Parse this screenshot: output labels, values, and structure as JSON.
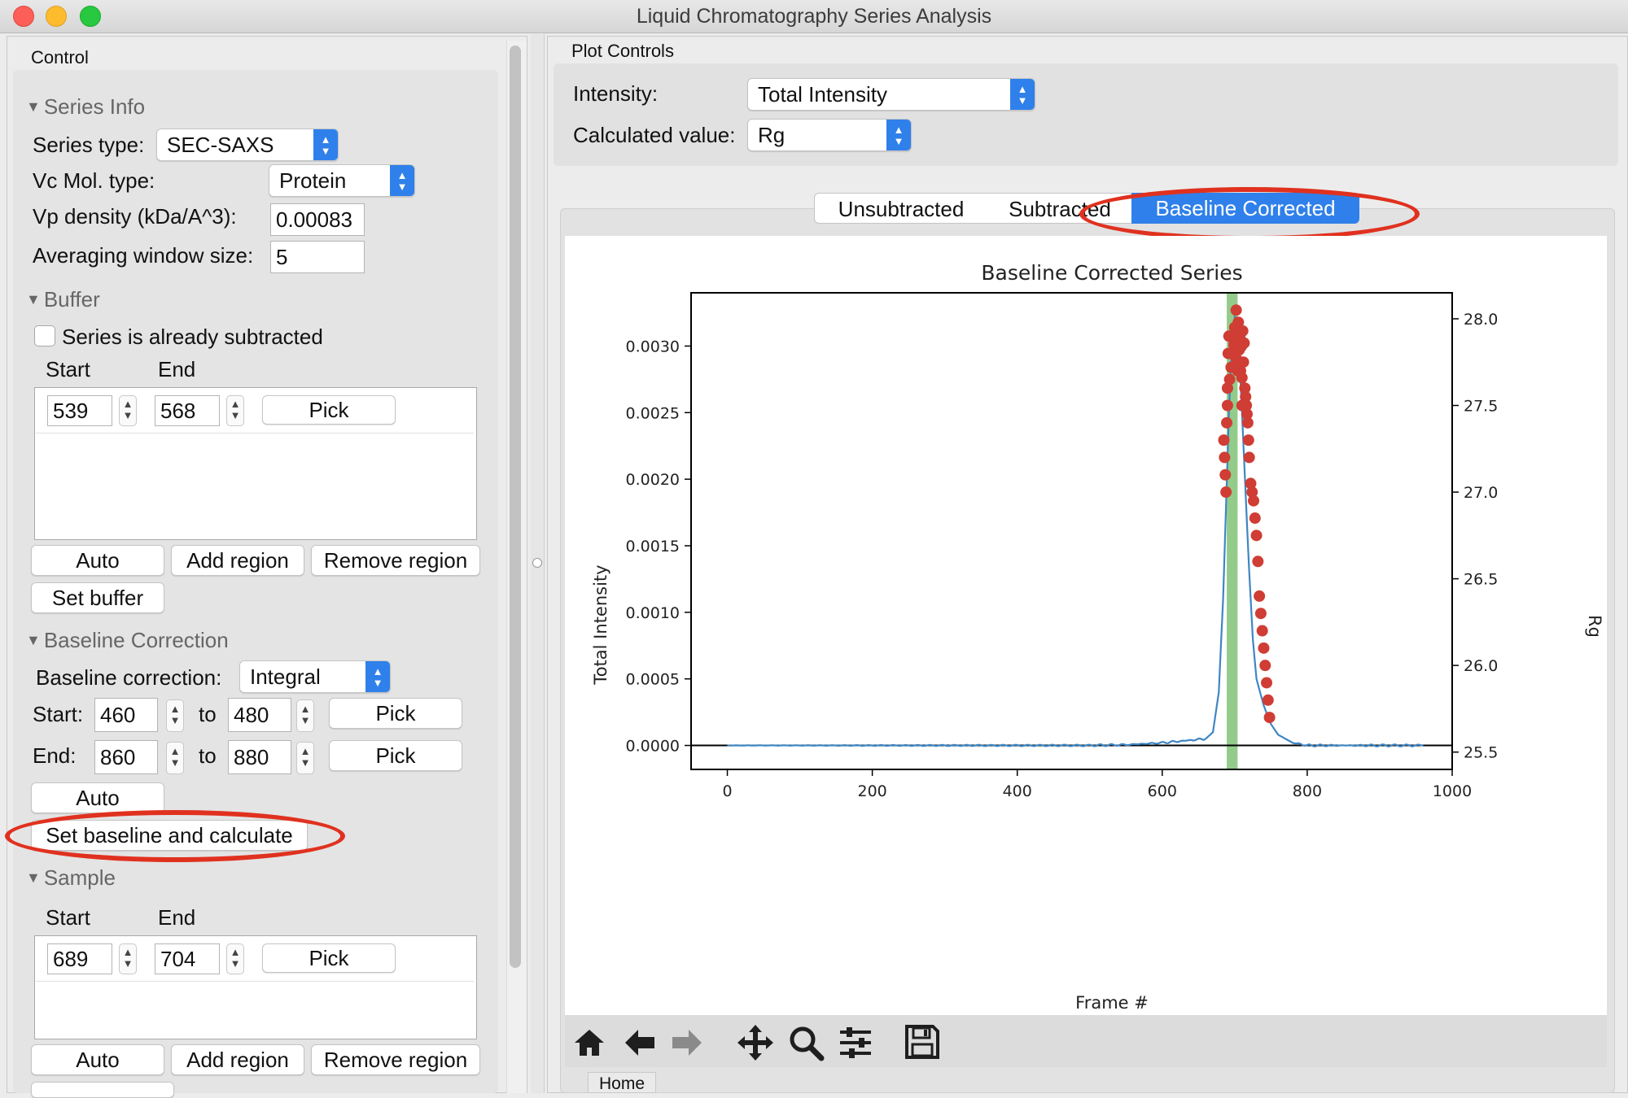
{
  "window": {
    "title": "Liquid Chromatography Series Analysis"
  },
  "control": {
    "title": "Control",
    "series_info": {
      "header": "Series Info",
      "series_type_label": "Series type:",
      "series_type_value": "SEC-SAXS",
      "vc_mol_label": "Vc Mol. type:",
      "vc_mol_value": "Protein",
      "vp_density_label": "Vp density (kDa/A^3):",
      "vp_density_value": "0.00083",
      "avg_window_label": "Averaging window size:",
      "avg_window_value": "5"
    },
    "buffer": {
      "header": "Buffer",
      "already_subtracted_label": "Series is already subtracted",
      "start_header": "Start",
      "end_header": "End",
      "start_value": "539",
      "end_value": "568",
      "pick_label": "Pick",
      "auto_label": "Auto",
      "add_region_label": "Add region",
      "remove_region_label": "Remove region",
      "set_buffer_label": "Set buffer"
    },
    "baseline": {
      "header": "Baseline Correction",
      "correction_label": "Baseline correction:",
      "correction_value": "Integral",
      "start_label": "Start:",
      "start_from": "460",
      "start_to": "480",
      "end_label": "End:",
      "end_from": "860",
      "end_to": "880",
      "to_label": "to",
      "pick_label": "Pick",
      "auto_label": "Auto",
      "set_label": "Set baseline and calculate"
    },
    "sample": {
      "header": "Sample",
      "start_header": "Start",
      "end_header": "End",
      "start_value": "689",
      "end_value": "704",
      "pick_label": "Pick",
      "auto_label": "Auto",
      "add_region_label": "Add region",
      "remove_region_label": "Remove region"
    }
  },
  "plot_controls": {
    "title": "Plot Controls",
    "intensity_label": "Intensity:",
    "intensity_value": "Total Intensity",
    "calc_label": "Calculated value:",
    "calc_value": "Rg"
  },
  "tabs": [
    "Unsubtracted",
    "Subtracted",
    "Baseline Corrected"
  ],
  "active_tab": "Baseline Corrected",
  "tooltip": "Home",
  "toolbar_icons": [
    "home-icon",
    "back-arrow-icon",
    "forward-arrow-icon",
    "pan-icon",
    "zoom-icon",
    "configure-icon",
    "save-icon"
  ],
  "colors": {
    "accent": "#2f80ea",
    "highlight_oval": "#e0311f",
    "series_line": "#3f86c3",
    "rg_points": "#cf3d34",
    "sample_region": "#93cc8a"
  },
  "chart_data": {
    "type": "line",
    "title": "Baseline Corrected Series",
    "xlabel": "Frame #",
    "ylabel": "Total Intensity",
    "y2label": "Rg",
    "xlim": [
      -50,
      1000
    ],
    "ylim": [
      -0.00018,
      0.0034
    ],
    "y2lim": [
      25.4,
      28.15
    ],
    "xticks": [
      "0",
      "200",
      "400",
      "600",
      "800",
      "1000"
    ],
    "yticks": [
      "0.0000",
      "0.0005",
      "0.0010",
      "0.0015",
      "0.0020",
      "0.0025",
      "0.0030"
    ],
    "y2ticks": [
      "25.5",
      "26.0",
      "26.5",
      "27.0",
      "27.5",
      "28.0"
    ],
    "highlight_region": [
      689,
      704
    ],
    "series": [
      {
        "name": "Total Intensity",
        "x": [
          0,
          100,
          200,
          300,
          400,
          500,
          550,
          600,
          620,
          640,
          660,
          670,
          678,
          684,
          688,
          692,
          696,
          700,
          703,
          706,
          710,
          715,
          720,
          725,
          730,
          740,
          750,
          760,
          780,
          800,
          850,
          900,
          960
        ],
        "values": [
          0.0,
          0.0,
          0.0,
          0.0,
          0.0,
          0.0,
          5e-06,
          2e-05,
          3e-05,
          4e-05,
          5e-05,
          0.0001,
          0.0004,
          0.0011,
          0.0018,
          0.0025,
          0.003,
          0.00322,
          0.0032,
          0.00295,
          0.0025,
          0.0019,
          0.0013,
          0.0008,
          0.0005,
          0.0003,
          0.00016,
          8e-05,
          2e-05,
          0.0,
          0.0,
          0.0,
          0.0
        ]
      },
      {
        "name": "Rg",
        "axis": "right",
        "x": [
          690,
          693,
          695,
          697,
          699,
          700,
          701,
          702,
          703,
          704,
          705,
          706,
          707,
          708,
          709,
          710,
          711,
          712,
          713,
          714,
          715,
          716,
          717,
          718,
          719,
          720,
          722,
          724,
          726,
          728,
          730,
          732,
          734,
          736,
          738,
          740,
          742,
          744,
          746,
          748,
          685,
          686,
          687,
          688,
          689,
          690,
          691,
          692,
          700,
          702,
          704,
          706,
          708,
          710
        ],
        "values": [
          27.5,
          27.65,
          27.72,
          27.8,
          27.85,
          27.9,
          27.78,
          27.95,
          27.88,
          27.76,
          27.98,
          27.82,
          27.9,
          27.7,
          27.84,
          27.66,
          27.93,
          27.75,
          27.86,
          27.6,
          27.55,
          27.5,
          27.45,
          27.4,
          27.3,
          27.2,
          27.05,
          27.0,
          26.95,
          26.85,
          26.75,
          26.6,
          26.4,
          26.3,
          26.2,
          26.1,
          26.0,
          25.9,
          25.8,
          25.7,
          27.3,
          27.2,
          27.1,
          27.0,
          27.4,
          27.6,
          27.8,
          27.9,
          27.95,
          28.05,
          27.7,
          27.85,
          27.92,
          27.5
        ]
      }
    ]
  }
}
